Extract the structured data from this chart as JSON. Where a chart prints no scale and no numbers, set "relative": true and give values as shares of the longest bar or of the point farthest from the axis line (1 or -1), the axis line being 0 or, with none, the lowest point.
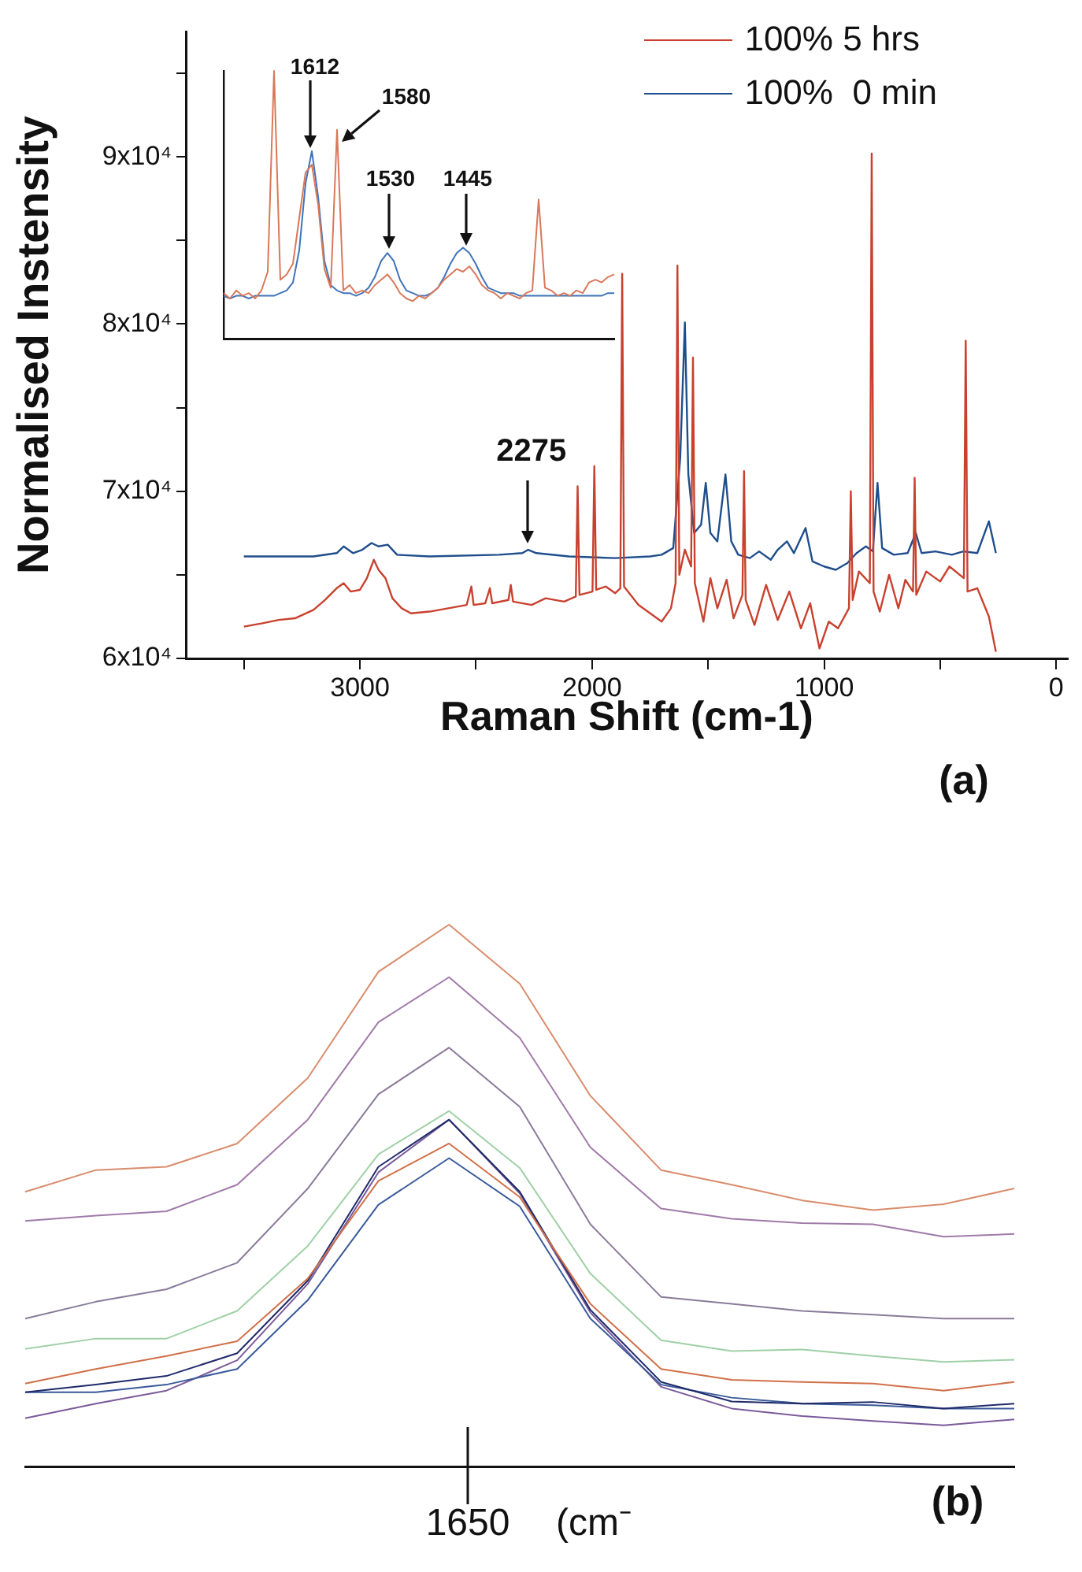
{
  "chart_data": [
    {
      "type": "line",
      "xlabel": "Raman Shift (cm-1)",
      "ylabel": "Normalised Instensity",
      "xlim": [
        3750,
        -50
      ],
      "ylim": [
        60000,
        97500
      ],
      "xticks": [
        {
          "value": 3500,
          "label": null
        },
        {
          "value": 3000,
          "label": "3000"
        },
        {
          "value": 2500,
          "label": null
        },
        {
          "value": 2000,
          "label": "2000"
        },
        {
          "value": 1500,
          "label": null
        },
        {
          "value": 1000,
          "label": "1000"
        },
        {
          "value": 500,
          "label": null
        },
        {
          "value": 0,
          "label": "0"
        }
      ],
      "yticks": [
        {
          "value": 60000,
          "label": "6x10⁴"
        },
        {
          "value": 65000,
          "label": null
        },
        {
          "value": 70000,
          "label": "7x10⁴"
        },
        {
          "value": 75000,
          "label": null
        },
        {
          "value": 80000,
          "label": "8x10⁴"
        },
        {
          "value": 85000,
          "label": null
        },
        {
          "value": 90000,
          "label": "9x10⁴"
        },
        {
          "value": 95000,
          "label": null
        }
      ],
      "legend": "top right",
      "series": [
        {
          "name": "100% 5 hrs",
          "color": "#c8412e",
          "x": [
            3500,
            3420,
            3350,
            3280,
            3200,
            3150,
            3100,
            3070,
            3040,
            3000,
            2970,
            2940,
            2920,
            2890,
            2860,
            2820,
            2780,
            2700,
            2620,
            2540,
            2520,
            2510,
            2460,
            2440,
            2430,
            2360,
            2350,
            2340,
            2260,
            2200,
            2120,
            2070,
            2062,
            2054,
            1998,
            1990,
            1982,
            1940,
            1900,
            1878,
            1870,
            1862,
            1800,
            1740,
            1700,
            1660,
            1640,
            1632,
            1624,
            1600,
            1573,
            1565,
            1557,
            1520,
            1490,
            1460,
            1420,
            1390,
            1352,
            1345,
            1338,
            1300,
            1250,
            1200,
            1150,
            1100,
            1060,
            1020,
            980,
            940,
            893,
            885,
            877,
            850,
            803,
            795,
            787,
            760,
            720,
            680,
            650,
            617,
            610,
            603,
            560,
            500,
            460,
            398,
            390,
            382,
            340,
            290,
            260
          ],
          "values": [
            61900,
            62100,
            62300,
            62400,
            62900,
            63500,
            64200,
            64500,
            64000,
            64100,
            64800,
            65900,
            65300,
            64800,
            63600,
            63000,
            62700,
            62800,
            63000,
            63200,
            64300,
            63200,
            63300,
            64200,
            63300,
            63500,
            64400,
            63400,
            63200,
            63600,
            63400,
            63700,
            70300,
            63800,
            64000,
            71500,
            64100,
            64300,
            63900,
            64200,
            83000,
            64300,
            63200,
            62600,
            62200,
            63000,
            64500,
            83500,
            65000,
            66500,
            65500,
            78000,
            64500,
            62200,
            64800,
            63000,
            64700,
            62400,
            63800,
            71200,
            63500,
            62000,
            64400,
            62300,
            64000,
            61800,
            63300,
            60600,
            62200,
            61800,
            63000,
            70000,
            63500,
            65200,
            64500,
            90200,
            64000,
            62800,
            65000,
            63000,
            64700,
            64000,
            70800,
            63800,
            65200,
            64600,
            65500,
            64800,
            79000,
            64000,
            64200,
            62500,
            60400
          ]
        },
        {
          "name": "100%  0 min",
          "color": "#1f4e8c",
          "x": [
            3500,
            3200,
            3100,
            3070,
            3030,
            2990,
            2950,
            2920,
            2880,
            2840,
            2700,
            2400,
            2300,
            2275,
            2240,
            2100,
            1900,
            1750,
            1700,
            1650,
            1620,
            1600,
            1585,
            1560,
            1530,
            1510,
            1490,
            1460,
            1425,
            1400,
            1370,
            1320,
            1280,
            1230,
            1200,
            1160,
            1130,
            1080,
            1050,
            1000,
            950,
            900,
            860,
            820,
            790,
            770,
            750,
            700,
            640,
            605,
            580,
            520,
            450,
            400,
            340,
            290,
            260
          ],
          "values": [
            66100,
            66100,
            66300,
            66700,
            66300,
            66500,
            66900,
            66700,
            66800,
            66200,
            66100,
            66200,
            66300,
            66500,
            66300,
            66100,
            66000,
            66100,
            66200,
            66600,
            72000,
            80100,
            71000,
            67500,
            68000,
            70500,
            67500,
            67000,
            71000,
            67000,
            66200,
            66000,
            66400,
            65900,
            66500,
            67000,
            66300,
            67800,
            65800,
            65500,
            65300,
            65700,
            66300,
            66700,
            66400,
            70500,
            66600,
            66200,
            66300,
            67500,
            66300,
            66400,
            66200,
            66400,
            66300,
            68200,
            66300
          ]
        }
      ],
      "annotations": [
        {
          "text": "2275",
          "x": 2275,
          "y": 66500
        },
        "(a)"
      ]
    },
    {
      "type": "line",
      "relative": true,
      "categories": [
        null,
        null,
        null,
        null,
        null,
        null,
        null,
        null,
        null,
        null,
        null,
        null,
        null,
        null,
        null,
        null,
        null,
        null,
        null,
        null,
        null,
        null,
        null,
        null,
        null,
        null,
        null,
        null,
        null,
        null,
        null,
        null,
        null,
        null,
        null,
        null,
        null,
        null,
        null,
        null,
        null,
        null,
        null,
        null,
        null,
        null,
        null,
        null,
        null,
        null,
        null,
        null,
        null,
        null,
        null,
        null,
        null,
        null,
        null,
        null,
        null,
        null,
        null
      ],
      "series": [
        {
          "color": "#d9785a",
          "values": [
            0.17,
            0.15,
            0.18,
            0.16,
            0.17,
            0.15,
            0.18,
            0.25,
            1,
            0.22,
            0.24,
            0.28,
            0.45,
            0.62,
            0.65,
            0.5,
            0.26,
            0.19,
            0.78,
            0.18,
            0.2,
            0.17,
            0.18,
            0.17,
            0.2,
            0.22,
            0.24,
            0.21,
            0.17,
            0.15,
            0.14,
            0.16,
            0.15,
            0.17,
            0.19,
            0.22,
            0.24,
            0.26,
            0.25,
            0.27,
            0.24,
            0.2,
            0.18,
            0.17,
            0.15,
            0.17,
            0.16,
            0.15,
            0.17,
            0.18,
            0.52,
            0.19,
            0.18,
            0.16,
            0.17,
            0.16,
            0.18,
            0.17,
            0.21,
            0.22,
            0.21,
            0.23,
            0.24
          ]
        },
        {
          "color": "#3f74b8",
          "values": [
            0.16,
            0.15,
            0.16,
            0.16,
            0.15,
            0.16,
            0.16,
            0.16,
            0.16,
            0.17,
            0.18,
            0.21,
            0.33,
            0.58,
            0.7,
            0.53,
            0.29,
            0.2,
            0.18,
            0.17,
            0.17,
            0.16,
            0.17,
            0.19,
            0.23,
            0.29,
            0.32,
            0.29,
            0.22,
            0.18,
            0.17,
            0.16,
            0.16,
            0.17,
            0.19,
            0.23,
            0.28,
            0.32,
            0.34,
            0.32,
            0.28,
            0.23,
            0.19,
            0.18,
            0.17,
            0.17,
            0.17,
            0.16,
            0.16,
            0.16,
            0.16,
            0.16,
            0.16,
            0.16,
            0.16,
            0.16,
            0.16,
            0.16,
            0.16,
            0.16,
            0.16,
            0.17,
            0.17
          ]
        }
      ],
      "annotations": [
        "1612",
        "1580",
        "1530",
        "1445"
      ]
    },
    {
      "type": "line",
      "relative": true,
      "xlabel": "(cm⁻",
      "categories": [
        null,
        null,
        null,
        null,
        null,
        null,
        null,
        null,
        null,
        null,
        null,
        null,
        null,
        null,
        null
      ],
      "series": [
        {
          "color": "#d98c6c",
          "values": [
            0.507,
            0.547,
            0.553,
            0.596,
            0.717,
            0.913,
            1,
            0.891,
            0.684,
            0.547,
            0.52,
            0.491,
            0.473,
            0.484,
            0.513
          ]
        },
        {
          "color": "#a07aa8",
          "values": [
            0.453,
            0.463,
            0.471,
            0.52,
            0.64,
            0.82,
            0.903,
            0.791,
            0.589,
            0.476,
            0.457,
            0.449,
            0.447,
            0.424,
            0.429
          ]
        },
        {
          "color": "#8a7a9a",
          "values": [
            0.273,
            0.304,
            0.327,
            0.376,
            0.513,
            0.687,
            0.773,
            0.664,
            0.447,
            0.313,
            0.3,
            0.287,
            0.28,
            0.273,
            0.273
          ]
        },
        {
          "color": "#9fd0a6",
          "values": [
            0.217,
            0.236,
            0.236,
            0.287,
            0.407,
            0.576,
            0.656,
            0.551,
            0.356,
            0.233,
            0.213,
            0.216,
            0.204,
            0.193,
            0.197
          ]
        },
        {
          "color": "#d07048",
          "values": [
            0.153,
            0.18,
            0.204,
            0.231,
            0.347,
            0.527,
            0.596,
            0.497,
            0.3,
            0.18,
            0.16,
            0.156,
            0.153,
            0.14,
            0.156
          ]
        },
        {
          "color": "#1e2a6a",
          "values": [
            0.137,
            0.151,
            0.167,
            0.209,
            0.343,
            0.553,
            0.64,
            0.507,
            0.289,
            0.156,
            0.12,
            0.116,
            0.119,
            0.107,
            0.116
          ]
        },
        {
          "color": "#3a5a9a",
          "values": [
            0.137,
            0.137,
            0.151,
            0.18,
            0.307,
            0.483,
            0.569,
            0.48,
            0.273,
            0.151,
            0.127,
            0.116,
            0.113,
            0.107,
            0.107
          ]
        },
        {
          "color": "#7a5a9a",
          "values": [
            0.089,
            0.116,
            0.14,
            0.196,
            0.337,
            0.543,
            0.64,
            0.504,
            0.284,
            0.147,
            0.107,
            0.093,
            0.084,
            0.076,
            0.087
          ]
        }
      ],
      "annotations": [
        "1650",
        "(b)"
      ]
    }
  ]
}
